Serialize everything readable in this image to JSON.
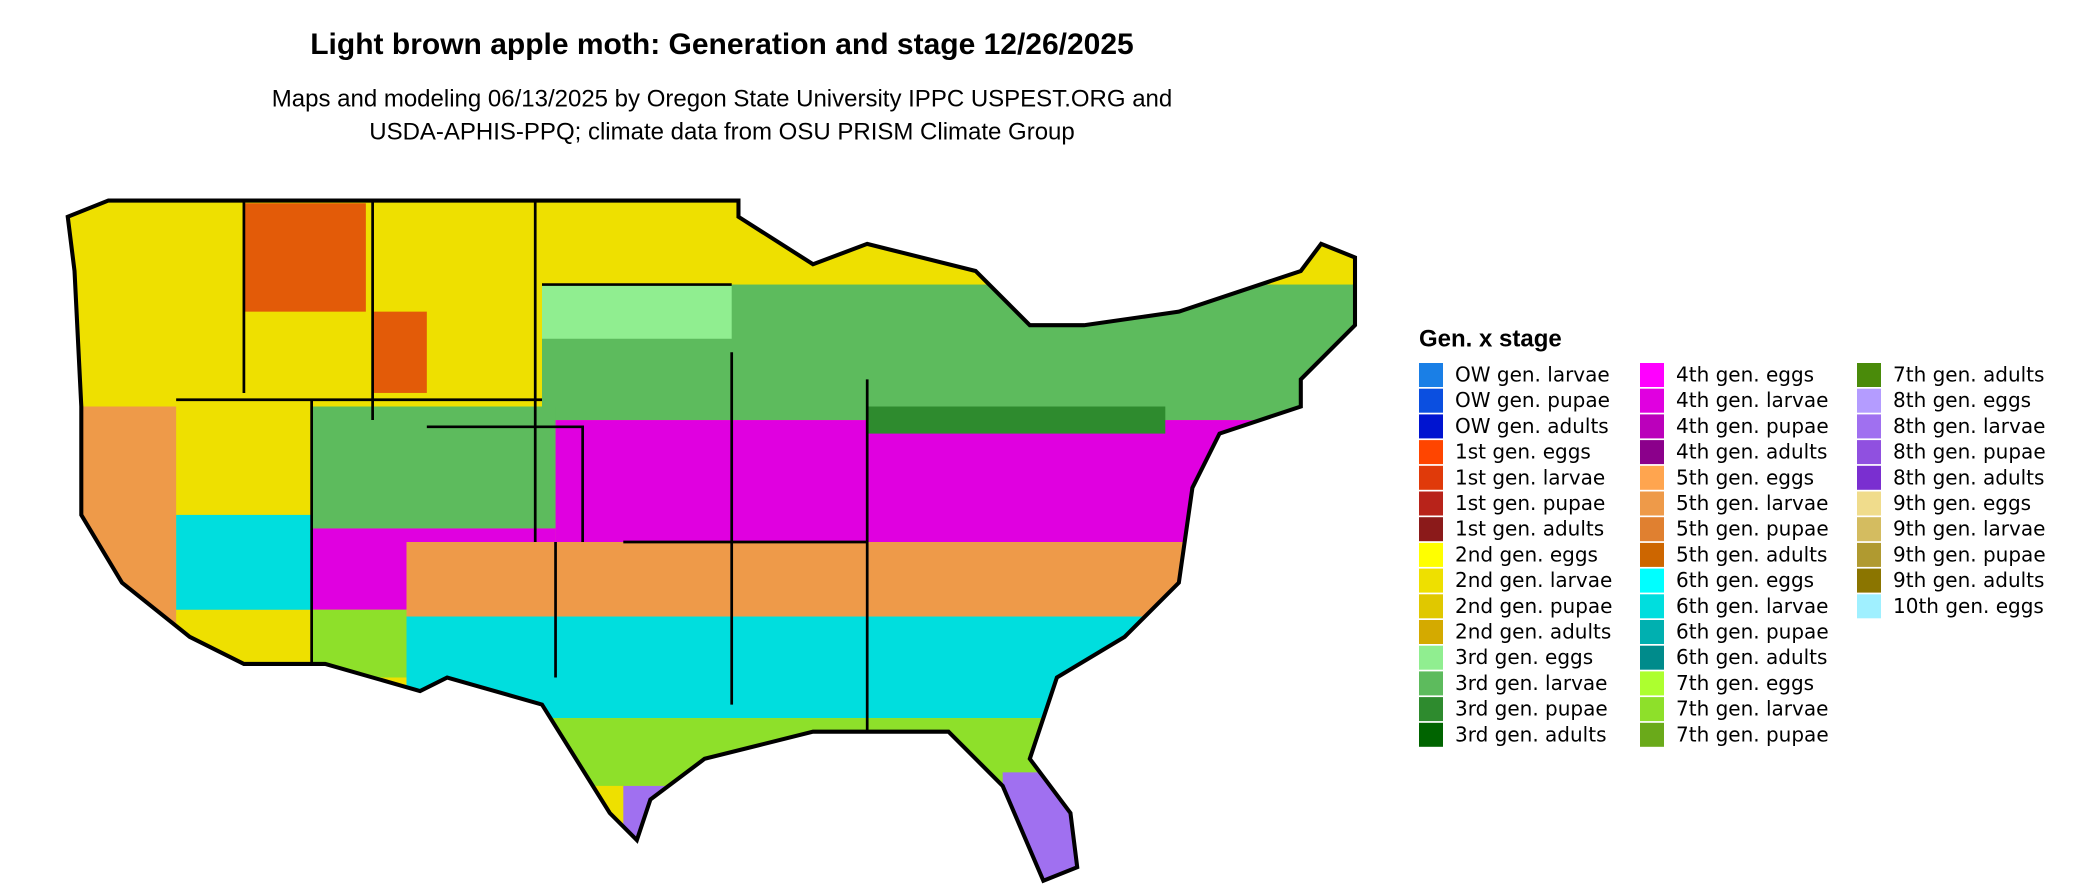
{
  "title": "Light brown apple moth: Generation and stage 12/26/2025",
  "subtitle": [
    "Maps and modeling 06/13/2025 by Oregon State University IPPC USPEST.ORG and",
    "USDA-APHIS-PPQ; climate data from OSU PRISM Climate Group"
  ],
  "legend": {
    "title": "Gen. x stage",
    "items": [
      {
        "label": "OW gen. larvae",
        "color": "#1a7fe6"
      },
      {
        "label": "OW gen. pupae",
        "color": "#0b4fe0"
      },
      {
        "label": "OW gen. adults",
        "color": "#0014d0"
      },
      {
        "label": "1st gen. eggs",
        "color": "#ff4500"
      },
      {
        "label": "1st gen. larvae",
        "color": "#e03a0a"
      },
      {
        "label": "1st gen. pupae",
        "color": "#b8231a"
      },
      {
        "label": "1st gen. adults",
        "color": "#8b1a1a"
      },
      {
        "label": "2nd gen. eggs",
        "color": "#ffff00"
      },
      {
        "label": "2nd gen. larvae",
        "color": "#eee000"
      },
      {
        "label": "2nd gen. pupae",
        "color": "#e0c800"
      },
      {
        "label": "2nd gen. adults",
        "color": "#d4aa00"
      },
      {
        "label": "3rd gen. eggs",
        "color": "#90ee90"
      },
      {
        "label": "3rd gen. larvae",
        "color": "#5dbb5d"
      },
      {
        "label": "3rd gen. pupae",
        "color": "#2e8b2e"
      },
      {
        "label": "3rd gen. adults",
        "color": "#006400"
      },
      {
        "label": "4th gen. eggs",
        "color": "#ff00ff"
      },
      {
        "label": "4th gen. larvae",
        "color": "#e000e0"
      },
      {
        "label": "4th gen. pupae",
        "color": "#bb00bb"
      },
      {
        "label": "4th gen. adults",
        "color": "#8b008b"
      },
      {
        "label": "5th gen. eggs",
        "color": "#ffa54f"
      },
      {
        "label": "5th gen. larvae",
        "color": "#ee9a49"
      },
      {
        "label": "5th gen. pupae",
        "color": "#e08030"
      },
      {
        "label": "5th gen. adults",
        "color": "#cd6600"
      },
      {
        "label": "6th gen. eggs",
        "color": "#00ffff"
      },
      {
        "label": "6th gen. larvae",
        "color": "#00dede"
      },
      {
        "label": "6th gen. pupae",
        "color": "#00b0b0"
      },
      {
        "label": "6th gen. adults",
        "color": "#008b8b"
      },
      {
        "label": "7th gen. eggs",
        "color": "#adff2f"
      },
      {
        "label": "7th gen. larvae",
        "color": "#8ee02a"
      },
      {
        "label": "7th gen. pupae",
        "color": "#6aaa1a"
      },
      {
        "label": "7th gen. adults",
        "color": "#4a8b0a"
      },
      {
        "label": "8th gen. eggs",
        "color": "#b49cff"
      },
      {
        "label": "8th gen. larvae",
        "color": "#a070f0"
      },
      {
        "label": "8th gen. pupae",
        "color": "#9050e0"
      },
      {
        "label": "8th gen. adults",
        "color": "#7a2fd0"
      },
      {
        "label": "9th gen. eggs",
        "color": "#f0dc8c"
      },
      {
        "label": "9th gen. larvae",
        "color": "#d4bc60"
      },
      {
        "label": "9th gen. pupae",
        "color": "#b09a30"
      },
      {
        "label": "9th gen. adults",
        "color": "#8b7500"
      },
      {
        "label": "10th gen. eggs",
        "color": "#a0f0ff"
      }
    ]
  }
}
